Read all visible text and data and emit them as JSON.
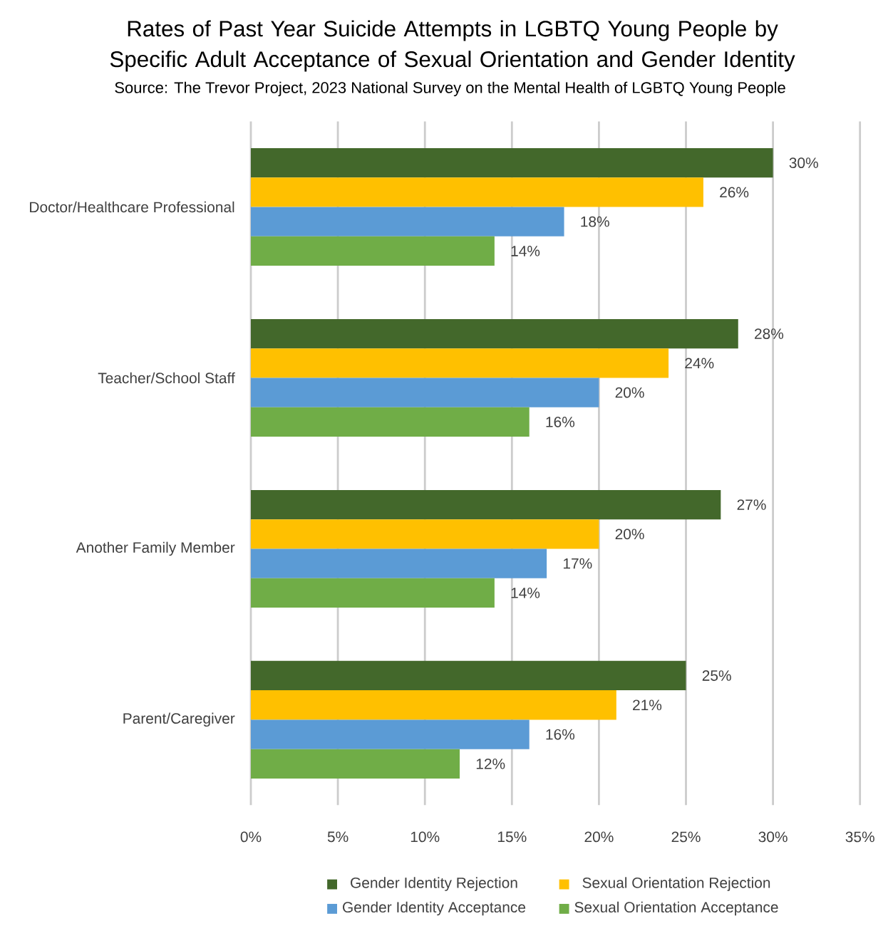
{
  "chart_data": {
    "type": "bar",
    "orientation": "horizontal",
    "title": "Rates of Past Year Suicide Attempts in LGBTQ Young People by Specific Adult Acceptance of Sexual Orientation and Gender Identity",
    "subtitle": "Source: The Trevor Project, 2023 National Survey on the Mental Health of LGBTQ Young People",
    "categories": [
      "Doctor/Healthcare Professional",
      "Teacher/School Staff",
      "Another Family Member",
      "Parent/Caregiver"
    ],
    "series": [
      {
        "name": "Gender Identity Rejection",
        "color": "#43682b",
        "values": [
          30,
          28,
          27,
          25
        ],
        "value_labels": [
          "30%",
          "28%",
          "27%",
          "25%"
        ]
      },
      {
        "name": "Sexual Orientation Rejection",
        "color": "#ffc000",
        "values": [
          26,
          24,
          20,
          21
        ],
        "value_labels": [
          "26%",
          "24%",
          "20%",
          "21%"
        ]
      },
      {
        "name": "Gender Identity Acceptance",
        "color": "#5b9bd5",
        "values": [
          18,
          20,
          17,
          16
        ],
        "value_labels": [
          "18%",
          "20%",
          "17%",
          "16%"
        ]
      },
      {
        "name": "Sexual Orientation Acceptance",
        "color": "#70ad47",
        "values": [
          14,
          16,
          14,
          12
        ],
        "value_labels": [
          "14%",
          "16%",
          "14%",
          "12%"
        ]
      }
    ],
    "xlim": [
      0,
      35
    ],
    "xticks": [
      {
        "value": 0,
        "label": "0%"
      },
      {
        "value": 5,
        "label": "5%"
      },
      {
        "value": 10,
        "label": "10%"
      },
      {
        "value": 15,
        "label": "15%"
      },
      {
        "value": 20,
        "label": "20%"
      },
      {
        "value": 25,
        "label": "25%"
      },
      {
        "value": 30,
        "label": "30%"
      },
      {
        "value": 35,
        "label": "35%"
      }
    ],
    "grid": "x",
    "legend": "bottom"
  }
}
